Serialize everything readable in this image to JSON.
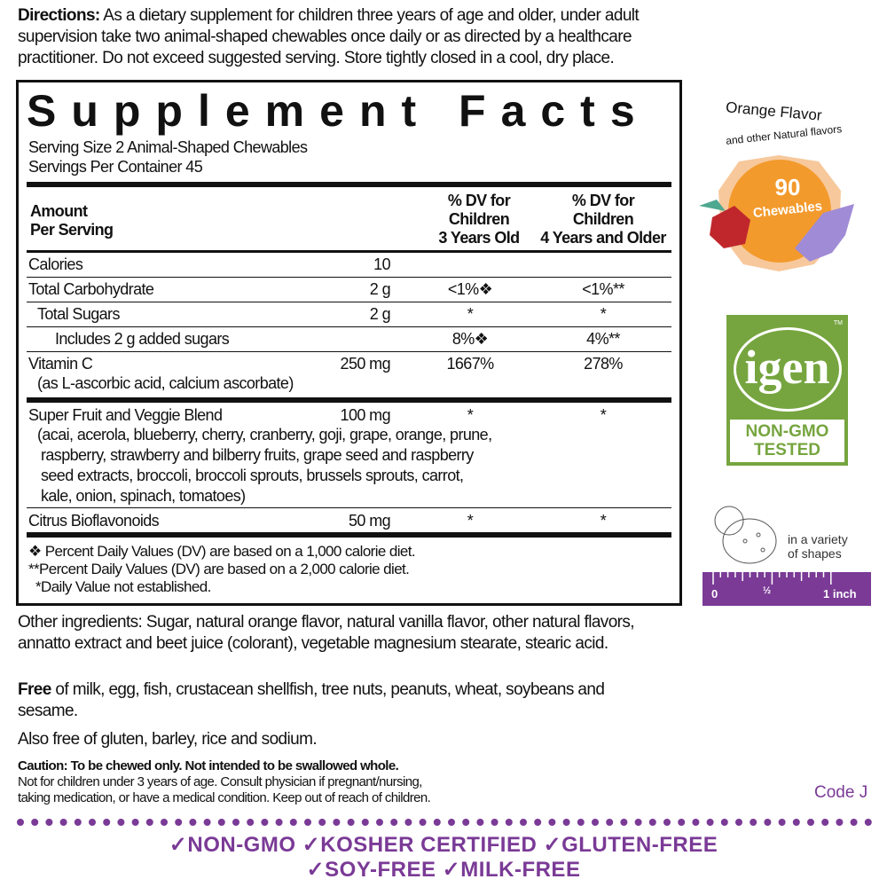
{
  "directions": {
    "label": "Directions:",
    "text": " As a dietary supplement for children three years of age and older, under adult supervision take two animal-shaped chewables once daily or as directed by a healthcare practitioner. Do not exceed suggested serving. Store tightly closed in a cool, dry place."
  },
  "facts": {
    "title": "Supplement Facts",
    "serving_size": "Serving Size 2 Animal-Shaped Chewables",
    "servings_per_container": "Servings Per Container 45",
    "headers": {
      "amount": [
        "Amount",
        "Per Serving"
      ],
      "dv3": [
        "% DV for",
        "Children",
        "3 Years Old"
      ],
      "dv4": [
        "% DV for",
        "Children",
        "4 Years and Older"
      ]
    },
    "rows": [
      {
        "name": "Calories",
        "amount": "10",
        "dv3": "",
        "dv4": ""
      },
      {
        "name": "Total Carbohydrate",
        "amount": "2 g",
        "dv3": "<1%❖",
        "dv4": "<1%**"
      },
      {
        "name": "Total Sugars",
        "amount": "2 g",
        "dv3": "*",
        "dv4": "*"
      },
      {
        "name": "Includes 2 g added sugars",
        "amount": "",
        "dv3": "8%❖",
        "dv4": "4%**"
      },
      {
        "name": "Vitamin C",
        "sub": "(as L-ascorbic acid, calcium ascorbate)",
        "amount": "250 mg",
        "dv3": "1667%",
        "dv4": "278%"
      },
      {
        "name": "Super Fruit and Veggie Blend",
        "amount": "100 mg",
        "dv3": "*",
        "dv4": "*",
        "sub_lines": [
          "(acai, acerola, blueberry, cherry, cranberry, goji, grape, orange, prune,",
          "raspberry, strawberry and bilberry fruits, grape seed and raspberry",
          "seed extracts, broccoli, broccoli sprouts, brussels sprouts, carrot,",
          "kale, onion, spinach, tomatoes)"
        ]
      },
      {
        "name": "Citrus Bioflavonoids",
        "amount": "50 mg",
        "dv3": "*",
        "dv4": "*"
      }
    ],
    "footnotes": [
      "❖ Percent Daily Values (DV) are based on a 1,000 calorie diet.",
      "**Percent Daily Values (DV) are based on a 2,000 calorie diet.",
      "*Daily Value not established."
    ]
  },
  "other_ingredients": "Other ingredients: Sugar, natural orange flavor, natural vanilla flavor, other natural flavors, annatto extract and beet juice (colorant), vegetable magnesium stearate, stearic  acid.",
  "free": {
    "label": "Free",
    "text": " of milk, egg, fish, crustacean shellfish, tree nuts, peanuts, wheat, soybeans and sesame."
  },
  "also_free": "Also free of gluten, barley, rice and sodium.",
  "caution": {
    "bold": "Caution: To be chewed only. Not intended to be swallowed whole.",
    "lines": [
      "Not for children under 3 years of age. Consult physician if pregnant/nursing,",
      "taking medication, or have a medical condition. Keep out of reach of children."
    ]
  },
  "code": "Code J",
  "flavor": {
    "title": "Orange Flavor",
    "subtitle": "and other Natural flavors",
    "count": "90",
    "unit": "Chewables"
  },
  "igen": {
    "logo": "igen",
    "tm": "TM",
    "line1": "NON-GMO",
    "line2": "TESTED"
  },
  "shapes": {
    "text1": "in a variety",
    "text2": "of shapes",
    "ruler": [
      "0",
      "½",
      "1 inch"
    ]
  },
  "badges": {
    "line1": "✓NON-GMO ✓KOSHER CERTIFIED ✓GLUTEN-FREE",
    "line2": "✓SOY-FREE ✓MILK-FREE"
  },
  "colors": {
    "purple": "#7a3a96",
    "green": "#76a53f",
    "orange": "#f39a2c"
  }
}
